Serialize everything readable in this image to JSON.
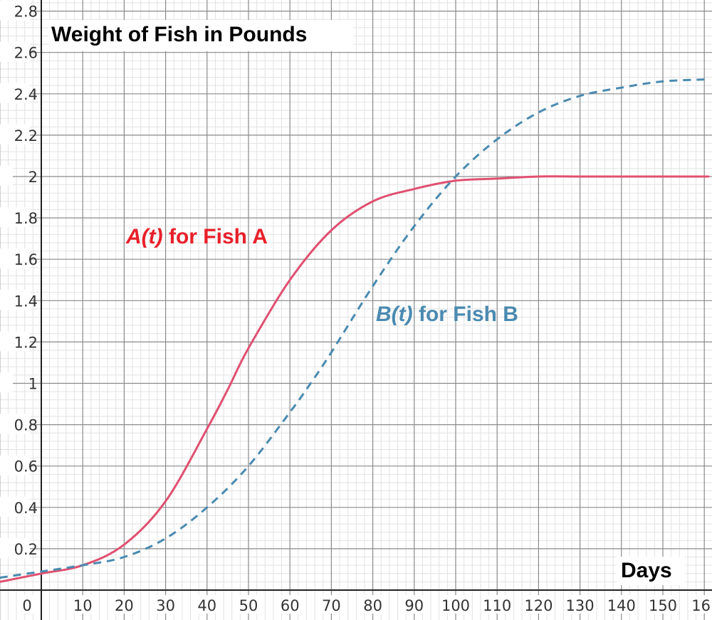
{
  "chart_data": {
    "type": "line",
    "title": "Weight of Fish in Pounds",
    "xlabel": "Days",
    "ylabel": "",
    "xlim": [
      -10,
      161
    ],
    "ylim": [
      0,
      2.85
    ],
    "grid": true,
    "x_ticks": [
      "0",
      "10",
      "20",
      "30",
      "40",
      "50",
      "60",
      "70",
      "80",
      "90",
      "100",
      "110",
      "120",
      "130",
      "140",
      "150",
      "16"
    ],
    "y_ticks": [
      "0.2",
      "0.4",
      "0.6",
      "0.8",
      "1",
      "1.2",
      "1.4",
      "1.6",
      "1.8",
      "2",
      "2.2",
      "2.4",
      "2.6",
      "2.8"
    ],
    "series": [
      {
        "name": "A(t) for Fish A",
        "label_math": "A(t)",
        "label_text": " for Fish A",
        "color": "#e05070",
        "dash": "solid",
        "x": [
          -10,
          0,
          10,
          20,
          30,
          40,
          45,
          50,
          60,
          70,
          80,
          90,
          100,
          110,
          120,
          130,
          140,
          150,
          161
        ],
        "y": [
          0.04,
          0.08,
          0.12,
          0.22,
          0.43,
          0.78,
          0.97,
          1.17,
          1.5,
          1.74,
          1.88,
          1.94,
          1.98,
          1.99,
          2.0,
          2.0,
          2.0,
          2.0,
          2.0
        ]
      },
      {
        "name": "B(t) for Fish B",
        "label_math": "B(t)",
        "label_text": " for Fish B",
        "color": "#4a8ab0",
        "dash": "dashed",
        "x": [
          -10,
          0,
          10,
          20,
          30,
          40,
          50,
          60,
          65,
          70,
          80,
          90,
          100,
          110,
          120,
          130,
          140,
          150,
          161
        ],
        "y": [
          0.06,
          0.09,
          0.12,
          0.16,
          0.25,
          0.4,
          0.6,
          0.86,
          1.0,
          1.15,
          1.47,
          1.76,
          2.0,
          2.18,
          2.31,
          2.39,
          2.43,
          2.46,
          2.47
        ]
      }
    ]
  }
}
